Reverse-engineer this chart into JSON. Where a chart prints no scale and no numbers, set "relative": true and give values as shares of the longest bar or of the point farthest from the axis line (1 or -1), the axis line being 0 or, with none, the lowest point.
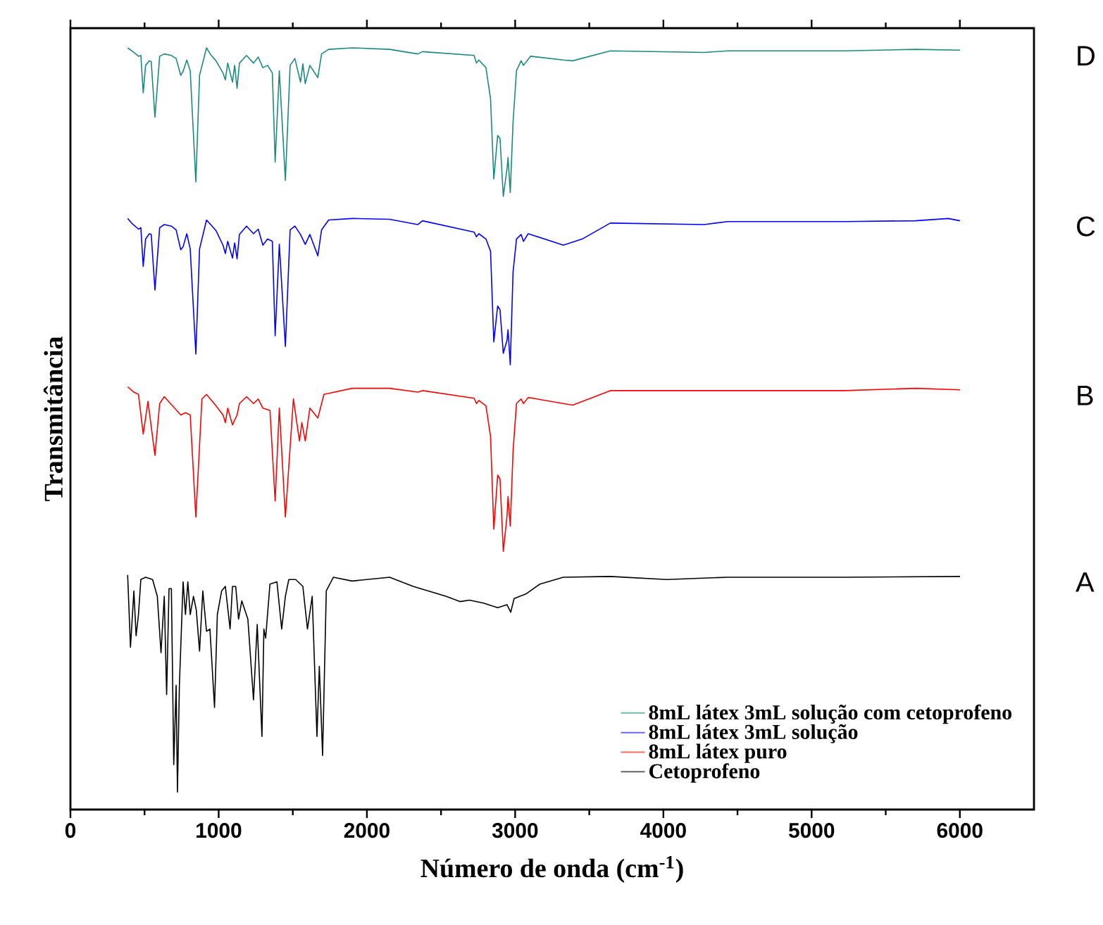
{
  "chart_data": {
    "type": "line",
    "relative": true,
    "xlabel": "Número de onda (cm$^{-1}$)",
    "ylabel": "Transmitância",
    "xlim": [
      0,
      6500
    ],
    "xticks": [
      0,
      1000,
      2000,
      3000,
      4000,
      5000,
      6000
    ],
    "tick_labels": "x",
    "legend": "bottom right",
    "annotations": [
      "D",
      "C",
      "B",
      "A"
    ],
    "series": [
      {
        "name": "8mL látex 3mL solução com cetoprofeno",
        "color": "#1a8a80",
        "x": [
          386,
          428,
          459,
          475,
          491,
          507,
          532,
          545,
          570,
          602,
          633,
          681,
          713,
          744,
          760,
          785,
          808,
          846,
          871,
          918,
          950,
          982,
          1029,
          1045,
          1061,
          1093,
          1108,
          1124,
          1140,
          1188,
          1235,
          1267,
          1298,
          1330,
          1362,
          1381,
          1409,
          1450,
          1482,
          1514,
          1552,
          1568,
          1584,
          1615,
          1669,
          1694,
          1742,
          1900,
          2153,
          2343,
          2375,
          2723,
          2739,
          2755,
          2803,
          2834,
          2856,
          2882,
          2898,
          2920,
          2945,
          2952,
          2967,
          2986,
          3009,
          3040,
          3056,
          3104,
          3325,
          3388,
          3642,
          4275,
          4434,
          5225,
          5700,
          6001
        ],
        "values": [
          1.0,
          0.994,
          0.989,
          0.99,
          0.941,
          0.977,
          0.983,
          0.982,
          0.909,
          0.989,
          0.992,
          0.99,
          0.986,
          0.964,
          0.969,
          0.984,
          0.97,
          0.824,
          0.964,
          1.0,
          0.99,
          0.983,
          0.967,
          0.958,
          0.98,
          0.955,
          0.977,
          0.947,
          0.98,
          0.99,
          0.98,
          0.988,
          0.974,
          0.977,
          0.967,
          0.85,
          0.97,
          0.826,
          0.977,
          0.986,
          0.955,
          0.979,
          0.953,
          0.977,
          0.961,
          0.992,
          0.998,
          1.0,
          0.998,
          0.992,
          0.995,
          0.99,
          0.98,
          0.984,
          0.974,
          0.933,
          0.828,
          0.885,
          0.881,
          0.805,
          0.841,
          0.856,
          0.81,
          0.903,
          0.97,
          0.983,
          0.977,
          0.989,
          0.984,
          0.983,
          0.996,
          0.994,
          0.996,
          0.996,
          0.998,
          0.997
        ]
      },
      {
        "name": "8mL látex 3mL solução",
        "color": "#0000ff",
        "x": [
          386,
          412,
          459,
          475,
          491,
          507,
          532,
          545,
          570,
          602,
          633,
          681,
          713,
          744,
          760,
          785,
          808,
          846,
          871,
          918,
          950,
          982,
          1029,
          1045,
          1061,
          1093,
          1108,
          1124,
          1140,
          1188,
          1235,
          1267,
          1298,
          1330,
          1362,
          1381,
          1409,
          1450,
          1482,
          1514,
          1552,
          1584,
          1615,
          1669,
          1694,
          1742,
          1900,
          2153,
          2343,
          2375,
          2723,
          2739,
          2755,
          2803,
          2834,
          2856,
          2882,
          2898,
          2920,
          2945,
          2952,
          2967,
          2986,
          3009,
          3040,
          3056,
          3088,
          3325,
          3452,
          3642,
          4275,
          4434,
          5225,
          5700,
          5922,
          6001
        ],
        "values": [
          0.776,
          0.77,
          0.762,
          0.764,
          0.713,
          0.749,
          0.756,
          0.755,
          0.682,
          0.764,
          0.768,
          0.766,
          0.761,
          0.735,
          0.739,
          0.756,
          0.736,
          0.598,
          0.736,
          0.774,
          0.767,
          0.76,
          0.741,
          0.73,
          0.746,
          0.724,
          0.744,
          0.723,
          0.755,
          0.766,
          0.756,
          0.762,
          0.741,
          0.749,
          0.746,
          0.622,
          0.742,
          0.608,
          0.761,
          0.766,
          0.755,
          0.742,
          0.755,
          0.727,
          0.761,
          0.774,
          0.776,
          0.775,
          0.768,
          0.773,
          0.758,
          0.752,
          0.756,
          0.749,
          0.733,
          0.614,
          0.661,
          0.656,
          0.599,
          0.616,
          0.63,
          0.584,
          0.706,
          0.749,
          0.755,
          0.746,
          0.756,
          0.741,
          0.749,
          0.77,
          0.768,
          0.772,
          0.772,
          0.773,
          0.776,
          0.773
        ]
      },
      {
        "name": "8mL látex puro",
        "color": "#ff0000",
        "x": [
          386,
          428,
          459,
          491,
          523,
          570,
          602,
          633,
          744,
          776,
          808,
          846,
          887,
          918,
          982,
          1029,
          1045,
          1061,
          1093,
          1124,
          1140,
          1188,
          1235,
          1267,
          1298,
          1346,
          1381,
          1409,
          1450,
          1504,
          1545,
          1561,
          1584,
          1615,
          1669,
          1710,
          1900,
          2153,
          2343,
          2375,
          2723,
          2739,
          2755,
          2803,
          2834,
          2856,
          2882,
          2898,
          2920,
          2945,
          2952,
          2967,
          2986,
          3009,
          3040,
          3056,
          3088,
          3388,
          3642,
          4275,
          4434,
          5225,
          5700,
          6001
        ],
        "values": [
          0.555,
          0.548,
          0.545,
          0.493,
          0.536,
          0.465,
          0.533,
          0.542,
          0.518,
          0.521,
          0.518,
          0.384,
          0.539,
          0.545,
          0.53,
          0.518,
          0.508,
          0.527,
          0.505,
          0.518,
          0.533,
          0.542,
          0.533,
          0.539,
          0.527,
          0.524,
          0.405,
          0.527,
          0.384,
          0.539,
          0.484,
          0.508,
          0.484,
          0.527,
          0.514,
          0.545,
          0.553,
          0.553,
          0.548,
          0.55,
          0.54,
          0.533,
          0.537,
          0.53,
          0.49,
          0.368,
          0.439,
          0.434,
          0.339,
          0.385,
          0.411,
          0.372,
          0.471,
          0.533,
          0.539,
          0.533,
          0.541,
          0.531,
          0.55,
          0.55,
          0.55,
          0.55,
          0.553,
          0.551
        ]
      },
      {
        "name": "Cetoprofeno",
        "color": "#000000",
        "x": [
          386,
          405,
          428,
          443,
          459,
          475,
          507,
          554,
          586,
          611,
          633,
          649,
          665,
          681,
          697,
          713,
          722,
          735,
          760,
          776,
          792,
          808,
          830,
          849,
          871,
          893,
          918,
          941,
          972,
          991,
          1020,
          1045,
          1077,
          1093,
          1115,
          1134,
          1156,
          1197,
          1235,
          1260,
          1292,
          1305,
          1317,
          1346,
          1393,
          1425,
          1450,
          1473,
          1520,
          1568,
          1599,
          1631,
          1663,
          1679,
          1701,
          1726,
          1774,
          1900,
          2153,
          2312,
          2533,
          2628,
          2692,
          2787,
          2882,
          2945,
          2970,
          2993,
          3072,
          3167,
          3325,
          3642,
          4022,
          4434,
          5225,
          6001
        ],
        "values": [
          0.308,
          0.213,
          0.287,
          0.228,
          0.256,
          0.302,
          0.305,
          0.302,
          0.28,
          0.206,
          0.28,
          0.151,
          0.29,
          0.29,
          0.059,
          0.163,
          0.023,
          0.163,
          0.299,
          0.256,
          0.299,
          0.256,
          0.28,
          0.262,
          0.208,
          0.287,
          0.234,
          0.237,
          0.134,
          0.256,
          0.287,
          0.293,
          0.237,
          0.293,
          0.293,
          0.25,
          0.274,
          0.25,
          0.144,
          0.243,
          0.096,
          0.237,
          0.225,
          0.296,
          0.299,
          0.237,
          0.28,
          0.302,
          0.302,
          0.293,
          0.237,
          0.28,
          0.096,
          0.188,
          0.071,
          0.287,
          0.305,
          0.3,
          0.305,
          0.293,
          0.28,
          0.273,
          0.275,
          0.271,
          0.265,
          0.269,
          0.259,
          0.277,
          0.283,
          0.296,
          0.305,
          0.306,
          0.302,
          0.305,
          0.305,
          0.306
        ]
      }
    ]
  }
}
